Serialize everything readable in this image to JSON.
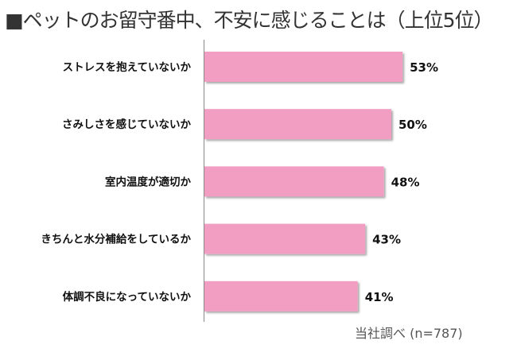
{
  "chart_data": {
    "type": "bar",
    "orientation": "horizontal",
    "title": "■ペットのお留守番中、不安に感じることは（上位5位）",
    "categories": [
      "ストレスを抱えていないか",
      "さみしさを感じていないか",
      "室内温度が適切か",
      "きちんと水分補給をしているか",
      "体調不良になっていないか"
    ],
    "values": [
      53,
      50,
      48,
      43,
      41
    ],
    "value_labels": [
      "53%",
      "50%",
      "48%",
      "43%",
      "41%"
    ],
    "unit": "%",
    "xlim": [
      0,
      100
    ],
    "grid": false,
    "legend": "none",
    "bar_color": "#f19ec2",
    "note": "当社調べ (n=787)"
  }
}
